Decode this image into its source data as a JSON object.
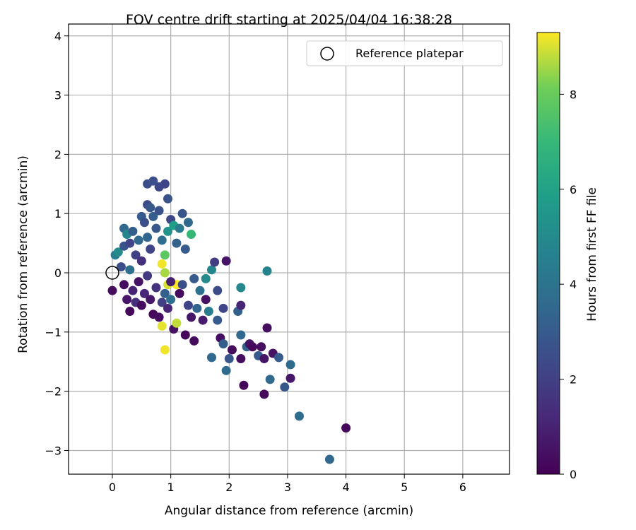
{
  "chart_data": {
    "type": "scatter",
    "title": "FOV centre drift starting at 2025/04/04 16:38:28",
    "xlabel": "Angular distance from reference (arcmin)",
    "ylabel": "Rotation from reference (arcmin)",
    "xlim": [
      -0.75,
      6.8
    ],
    "ylim": [
      -3.4,
      4.2
    ],
    "xticks": [
      0,
      1,
      2,
      3,
      4,
      5,
      6
    ],
    "yticks": [
      -3,
      -2,
      -1,
      0,
      1,
      2,
      3,
      4
    ],
    "grid": true,
    "legend": {
      "position": "top-right",
      "entries": [
        {
          "label": "Reference platepar",
          "marker": "open-circle"
        }
      ]
    },
    "reference_point": {
      "x": 0,
      "y": 0
    },
    "colorbar": {
      "label": "Hours from first FF file",
      "range": [
        0,
        9.3
      ],
      "ticks": [
        0,
        2,
        4,
        6,
        8
      ],
      "colormap": "viridis"
    },
    "points": [
      {
        "x": 0.0,
        "y": -0.3,
        "c": 0.3
      },
      {
        "x": 0.05,
        "y": 0.3,
        "c": 4.5
      },
      {
        "x": 0.1,
        "y": 0.35,
        "c": 5.0
      },
      {
        "x": 0.15,
        "y": 0.1,
        "c": 2.5
      },
      {
        "x": 0.2,
        "y": 0.75,
        "c": 3.5
      },
      {
        "x": 0.2,
        "y": 0.45,
        "c": 2.8
      },
      {
        "x": 0.25,
        "y": 0.65,
        "c": 4.8
      },
      {
        "x": 0.3,
        "y": 0.5,
        "c": 2.2
      },
      {
        "x": 0.3,
        "y": 0.05,
        "c": 3.8
      },
      {
        "x": 0.35,
        "y": 0.7,
        "c": 3.2
      },
      {
        "x": 0.4,
        "y": 0.3,
        "c": 2.0
      },
      {
        "x": 0.45,
        "y": 0.55,
        "c": 3.6
      },
      {
        "x": 0.5,
        "y": 0.95,
        "c": 3.0
      },
      {
        "x": 0.5,
        "y": 0.2,
        "c": 1.5
      },
      {
        "x": 0.55,
        "y": 0.85,
        "c": 2.6
      },
      {
        "x": 0.6,
        "y": 1.15,
        "c": 2.4
      },
      {
        "x": 0.6,
        "y": 0.6,
        "c": 3.4
      },
      {
        "x": 0.65,
        "y": 0.4,
        "c": 2.1
      },
      {
        "x": 0.7,
        "y": 0.95,
        "c": 3.1
      },
      {
        "x": 0.75,
        "y": 0.75,
        "c": 2.9
      },
      {
        "x": 0.8,
        "y": 1.05,
        "c": 2.7
      },
      {
        "x": 0.85,
        "y": 0.55,
        "c": 3.7
      },
      {
        "x": 0.9,
        "y": 0.3,
        "c": 7.8
      },
      {
        "x": 0.95,
        "y": 0.7,
        "c": 5.3
      },
      {
        "x": 1.0,
        "y": 0.9,
        "c": 2.3
      },
      {
        "x": 1.05,
        "y": 0.8,
        "c": 5.8
      },
      {
        "x": 1.1,
        "y": 0.5,
        "c": 3.3
      },
      {
        "x": 1.15,
        "y": 0.75,
        "c": 4.4
      },
      {
        "x": 1.2,
        "y": 1.0,
        "c": 2.8
      },
      {
        "x": 1.25,
        "y": 0.4,
        "c": 3.0
      },
      {
        "x": 1.3,
        "y": 0.85,
        "c": 3.5
      },
      {
        "x": 1.35,
        "y": 0.65,
        "c": 7.0
      },
      {
        "x": 0.9,
        "y": 0.0,
        "c": 8.6
      },
      {
        "x": 0.95,
        "y": -0.2,
        "c": 9.0
      },
      {
        "x": 0.85,
        "y": 0.15,
        "c": 9.2
      },
      {
        "x": 1.1,
        "y": -0.2,
        "c": 9.3
      },
      {
        "x": 0.6,
        "y": 1.5,
        "c": 2.5
      },
      {
        "x": 0.7,
        "y": 1.55,
        "c": 2.6
      },
      {
        "x": 0.8,
        "y": 1.45,
        "c": 2.3
      },
      {
        "x": 0.9,
        "y": 1.5,
        "c": 2.2
      },
      {
        "x": 0.95,
        "y": 1.25,
        "c": 2.7
      },
      {
        "x": 0.65,
        "y": 1.1,
        "c": 2.9
      },
      {
        "x": 0.2,
        "y": -0.2,
        "c": 0.4
      },
      {
        "x": 0.25,
        "y": -0.45,
        "c": 0.6
      },
      {
        "x": 0.3,
        "y": -0.65,
        "c": 0.2
      },
      {
        "x": 0.35,
        "y": -0.3,
        "c": 1.0
      },
      {
        "x": 0.4,
        "y": -0.5,
        "c": 1.4
      },
      {
        "x": 0.45,
        "y": -0.15,
        "c": 0.5
      },
      {
        "x": 0.5,
        "y": -0.55,
        "c": 0.3
      },
      {
        "x": 0.55,
        "y": -0.35,
        "c": 1.2
      },
      {
        "x": 0.6,
        "y": -0.05,
        "c": 1.8
      },
      {
        "x": 0.65,
        "y": -0.45,
        "c": 0.7
      },
      {
        "x": 0.7,
        "y": -0.7,
        "c": 0.2
      },
      {
        "x": 0.75,
        "y": -0.25,
        "c": 1.6
      },
      {
        "x": 0.8,
        "y": -0.75,
        "c": 0.4
      },
      {
        "x": 0.85,
        "y": -0.5,
        "c": 2.0
      },
      {
        "x": 0.9,
        "y": -0.35,
        "c": 3.2
      },
      {
        "x": 0.95,
        "y": -0.6,
        "c": 1.1
      },
      {
        "x": 1.0,
        "y": -0.45,
        "c": 3.8
      },
      {
        "x": 1.05,
        "y": -0.95,
        "c": 0.5
      },
      {
        "x": 0.85,
        "y": -0.9,
        "c": 9.1
      },
      {
        "x": 1.1,
        "y": -0.85,
        "c": 8.8
      },
      {
        "x": 0.9,
        "y": -1.3,
        "c": 9.2
      },
      {
        "x": 1.0,
        "y": -0.15,
        "c": 0.9
      },
      {
        "x": 1.15,
        "y": -0.35,
        "c": 0.3
      },
      {
        "x": 1.2,
        "y": -0.2,
        "c": 2.6
      },
      {
        "x": 1.25,
        "y": -1.05,
        "c": 0.2
      },
      {
        "x": 1.3,
        "y": -0.55,
        "c": 2.1
      },
      {
        "x": 1.35,
        "y": -0.75,
        "c": 0.6
      },
      {
        "x": 1.4,
        "y": -1.15,
        "c": 0.3
      },
      {
        "x": 1.4,
        "y": -0.1,
        "c": 3.0
      },
      {
        "x": 1.45,
        "y": -0.6,
        "c": 3.4
      },
      {
        "x": 1.5,
        "y": -0.3,
        "c": 3.9
      },
      {
        "x": 1.55,
        "y": -0.8,
        "c": 0.8
      },
      {
        "x": 1.6,
        "y": -0.1,
        "c": 5.0
      },
      {
        "x": 1.6,
        "y": -0.45,
        "c": 0.5
      },
      {
        "x": 1.65,
        "y": -0.65,
        "c": 4.4
      },
      {
        "x": 1.7,
        "y": 0.05,
        "c": 4.8
      },
      {
        "x": 1.7,
        "y": -1.43,
        "c": 3.5
      },
      {
        "x": 1.75,
        "y": 0.18,
        "c": 1.9
      },
      {
        "x": 1.8,
        "y": -0.8,
        "c": 3.0
      },
      {
        "x": 1.8,
        "y": -0.3,
        "c": 2.4
      },
      {
        "x": 1.85,
        "y": -1.1,
        "c": 0.4
      },
      {
        "x": 1.9,
        "y": -0.6,
        "c": 2.2
      },
      {
        "x": 1.9,
        "y": -1.2,
        "c": 3.1
      },
      {
        "x": 1.95,
        "y": 0.2,
        "c": 0.6
      },
      {
        "x": 1.95,
        "y": -1.65,
        "c": 3.6
      },
      {
        "x": 2.0,
        "y": -1.45,
        "c": 2.8
      },
      {
        "x": 2.05,
        "y": -1.3,
        "c": 0.3
      },
      {
        "x": 2.15,
        "y": -0.65,
        "c": 3.2
      },
      {
        "x": 2.2,
        "y": -0.25,
        "c": 4.9
      },
      {
        "x": 2.2,
        "y": -1.05,
        "c": 3.5
      },
      {
        "x": 2.2,
        "y": -0.55,
        "c": 1.1
      },
      {
        "x": 2.2,
        "y": -1.45,
        "c": 0.3
      },
      {
        "x": 2.25,
        "y": -1.9,
        "c": 0.2
      },
      {
        "x": 2.3,
        "y": -1.25,
        "c": 3.3
      },
      {
        "x": 2.35,
        "y": -1.2,
        "c": 0.5
      },
      {
        "x": 2.4,
        "y": -1.25,
        "c": 0.2
      },
      {
        "x": 2.5,
        "y": -1.4,
        "c": 3.0
      },
      {
        "x": 2.55,
        "y": -1.25,
        "c": 0.4
      },
      {
        "x": 2.6,
        "y": -1.45,
        "c": 0.6
      },
      {
        "x": 2.6,
        "y": -2.05,
        "c": 0.2
      },
      {
        "x": 2.65,
        "y": -0.93,
        "c": 0.4
      },
      {
        "x": 2.65,
        "y": 0.03,
        "c": 4.7
      },
      {
        "x": 2.7,
        "y": -1.8,
        "c": 3.6
      },
      {
        "x": 2.75,
        "y": -1.36,
        "c": 0.5
      },
      {
        "x": 2.85,
        "y": -1.43,
        "c": 3.0
      },
      {
        "x": 2.95,
        "y": -1.93,
        "c": 2.9
      },
      {
        "x": 3.05,
        "y": -1.55,
        "c": 3.6
      },
      {
        "x": 3.05,
        "y": -1.78,
        "c": 0.7
      },
      {
        "x": 3.2,
        "y": -2.42,
        "c": 3.7
      },
      {
        "x": 3.72,
        "y": -3.15,
        "c": 3.5
      },
      {
        "x": 4.0,
        "y": -2.62,
        "c": 0.2
      }
    ]
  }
}
